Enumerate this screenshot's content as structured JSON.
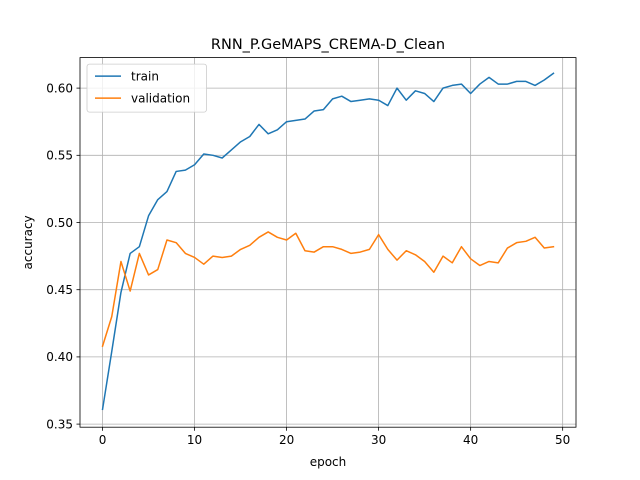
{
  "chart_data": {
    "type": "line",
    "title": "RNN_P.GeMAPS_CREMA-D_Clean",
    "xlabel": "epoch",
    "ylabel": "accuracy",
    "xlim": [
      -2.45,
      51.45
    ],
    "ylim": [
      0.3477,
      0.6227
    ],
    "xticks": [
      0,
      10,
      20,
      30,
      40,
      50
    ],
    "yticks": [
      0.35,
      0.4,
      0.45,
      0.5,
      0.55,
      0.6
    ],
    "ytick_labels": [
      "0.35",
      "0.40",
      "0.45",
      "0.50",
      "0.55",
      "0.60"
    ],
    "grid": true,
    "legend_position": "top-left",
    "x": [
      0,
      1,
      2,
      3,
      4,
      5,
      6,
      7,
      8,
      9,
      10,
      11,
      12,
      13,
      14,
      15,
      16,
      17,
      18,
      19,
      20,
      21,
      22,
      23,
      24,
      25,
      26,
      27,
      28,
      29,
      30,
      31,
      32,
      33,
      34,
      35,
      36,
      37,
      38,
      39,
      40,
      41,
      42,
      43,
      44,
      45,
      46,
      47,
      48,
      49
    ],
    "series": [
      {
        "name": "train",
        "color": "#1f77b4",
        "values": [
          0.361,
          0.404,
          0.448,
          0.477,
          0.482,
          0.505,
          0.517,
          0.523,
          0.538,
          0.539,
          0.543,
          0.551,
          0.55,
          0.548,
          0.554,
          0.56,
          0.564,
          0.573,
          0.566,
          0.569,
          0.575,
          0.576,
          0.577,
          0.583,
          0.584,
          0.592,
          0.594,
          0.59,
          0.591,
          0.592,
          0.591,
          0.587,
          0.6,
          0.591,
          0.598,
          0.596,
          0.59,
          0.6,
          0.602,
          0.603,
          0.596,
          0.603,
          0.608,
          0.603,
          0.603,
          0.605,
          0.605,
          0.602,
          0.606,
          0.611
        ]
      },
      {
        "name": "validation",
        "color": "#ff7f0e",
        "values": [
          0.408,
          0.43,
          0.471,
          0.449,
          0.477,
          0.461,
          0.465,
          0.487,
          0.485,
          0.477,
          0.474,
          0.469,
          0.475,
          0.474,
          0.475,
          0.48,
          0.483,
          0.489,
          0.493,
          0.489,
          0.487,
          0.492,
          0.479,
          0.478,
          0.482,
          0.482,
          0.48,
          0.477,
          0.478,
          0.48,
          0.491,
          0.48,
          0.472,
          0.479,
          0.476,
          0.471,
          0.463,
          0.475,
          0.47,
          0.482,
          0.473,
          0.468,
          0.471,
          0.47,
          0.481,
          0.485,
          0.486,
          0.489,
          0.481,
          0.482
        ]
      }
    ]
  }
}
